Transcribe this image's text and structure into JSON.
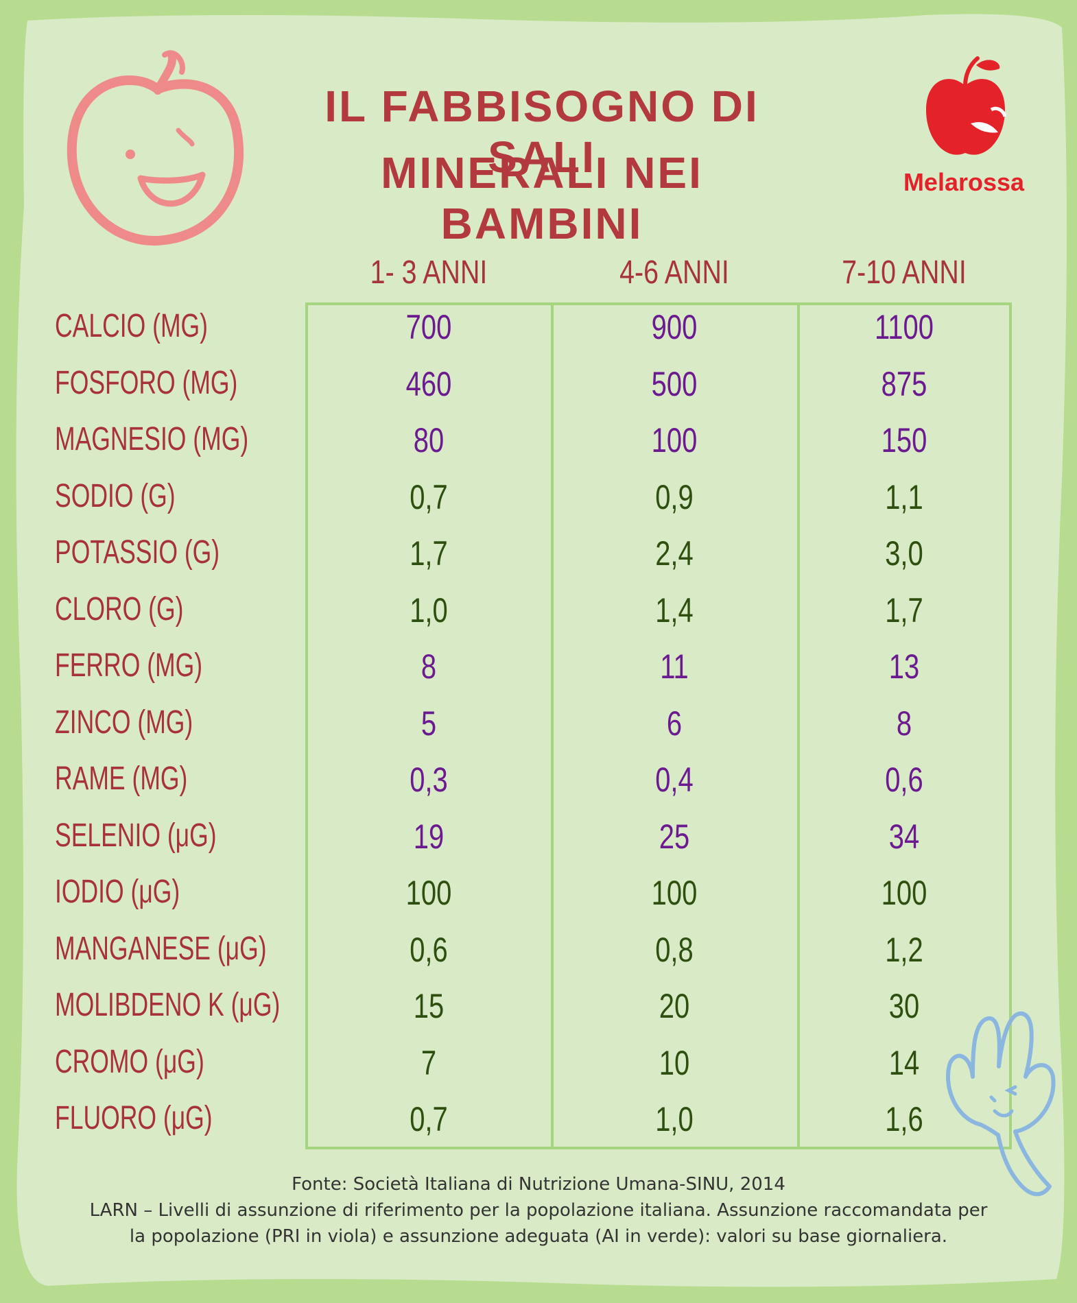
{
  "header": {
    "title_line1": "IL FABBISOGNO DI SALI",
    "title_line2": "MINERALI NEI BAMBINI",
    "brand": "Melarossa"
  },
  "columns": [
    "1- 3 ANNI",
    "4-6 ANNI",
    "7-10 ANNI"
  ],
  "rows": [
    {
      "label": "CALCIO (MG)",
      "values": [
        "700",
        "900",
        "1100"
      ],
      "type": "PRI"
    },
    {
      "label": "FOSFORO (MG)",
      "values": [
        "460",
        "500",
        "875"
      ],
      "type": "PRI"
    },
    {
      "label": "MAGNESIO (MG)",
      "values": [
        "80",
        "100",
        "150"
      ],
      "type": "PRI"
    },
    {
      "label": "SODIO (G)",
      "values": [
        "0,7",
        "0,9",
        "1,1"
      ],
      "type": "AI"
    },
    {
      "label": "POTASSIO (G)",
      "values": [
        "1,7",
        "2,4",
        "3,0"
      ],
      "type": "AI"
    },
    {
      "label": "CLORO (G)",
      "values": [
        "1,0",
        "1,4",
        "1,7"
      ],
      "type": "AI"
    },
    {
      "label": "FERRO (MG)",
      "values": [
        "8",
        "11",
        "13"
      ],
      "type": "PRI"
    },
    {
      "label": "ZINCO (MG)",
      "values": [
        "5",
        "6",
        "8"
      ],
      "type": "PRI"
    },
    {
      "label": "RAME (MG)",
      "values": [
        "0,3",
        "0,4",
        "0,6"
      ],
      "type": "PRI"
    },
    {
      "label": "SELENIO (μG)",
      "values": [
        "19",
        "25",
        "34"
      ],
      "type": "PRI"
    },
    {
      "label": "IODIO (μG)",
      "values": [
        "100",
        "100",
        "100"
      ],
      "type": "AI"
    },
    {
      "label": "MANGANESE (μG)",
      "values": [
        "0,6",
        "0,8",
        "1,2"
      ],
      "type": "AI"
    },
    {
      "label": "MOLIBDENO K (μG)",
      "values": [
        "15",
        "20",
        "30"
      ],
      "type": "AI"
    },
    {
      "label": "CROMO (μG)",
      "values": [
        "7",
        "10",
        "14"
      ],
      "type": "AI"
    },
    {
      "label": "FLUORO (μG)",
      "values": [
        "0,7",
        "1,0",
        "1,6"
      ],
      "type": "AI"
    }
  ],
  "footer": {
    "line1": "Fonte: Società Italiana di Nutrizione Umana-SINU, 2014",
    "line2": "LARN – Livelli di assunzione di riferimento per la popolazione italiana. Assunzione raccomandata per",
    "line3": "la popolazione (PRI in viola) e assunzione adeguata (AI in verde): valori su base giornaliera."
  },
  "colors": {
    "background_outer": "#b7dc8f",
    "background_inner": "#d9ebc6",
    "title": "#b23a3f",
    "label": "#a8323b",
    "pri_value": "#6b1a8f",
    "ai_value": "#2f4f10",
    "brand_red": "#e3222a",
    "apple_doodle": "#ef8a8a",
    "fork_doodle": "#8ab6e0"
  },
  "icons": [
    "apple-doodle-icon",
    "melarossa-apple-logo-icon",
    "fork-doodle-icon"
  ]
}
